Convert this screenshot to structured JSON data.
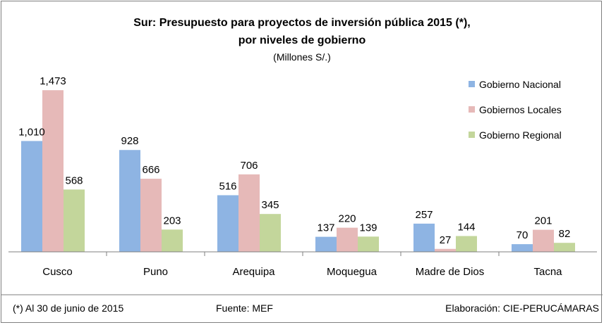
{
  "chart_data": {
    "type": "bar",
    "title_line1": "Sur: Presupuesto para proyectos de inversión pública 2015 (*),",
    "title_line2": "por niveles de gobierno",
    "subtitle": "(Millones S/.)",
    "categories": [
      "Cusco",
      "Puno",
      "Arequipa",
      "Moquegua",
      "Madre de Dios",
      "Tacna"
    ],
    "series": [
      {
        "name": "Gobierno Nacional",
        "color": "#8eb4e3",
        "values": [
          1010,
          928,
          516,
          137,
          257,
          70
        ],
        "labels": [
          "1,010",
          "928",
          "516",
          "137",
          "257",
          "70"
        ]
      },
      {
        "name": "Gobiernos Locales",
        "color": "#e6b9b8",
        "values": [
          1473,
          666,
          706,
          220,
          27,
          201
        ],
        "labels": [
          "1,473",
          "666",
          "706",
          "220",
          "27",
          "201"
        ]
      },
      {
        "name": "Gobierno Regional",
        "color": "#c3d69b",
        "values": [
          568,
          203,
          345,
          139,
          144,
          82
        ],
        "labels": [
          "568",
          "203",
          "345",
          "139",
          "144",
          "82"
        ]
      }
    ],
    "ylim": [
      0,
      1500
    ],
    "legend_position": "top-right",
    "grid": false
  },
  "footer": {
    "note": "(*) Al 30 de junio de 2015",
    "source": "Fuente: MEF",
    "credit": "Elaboración: CIE-PERUCÁMARAS"
  }
}
